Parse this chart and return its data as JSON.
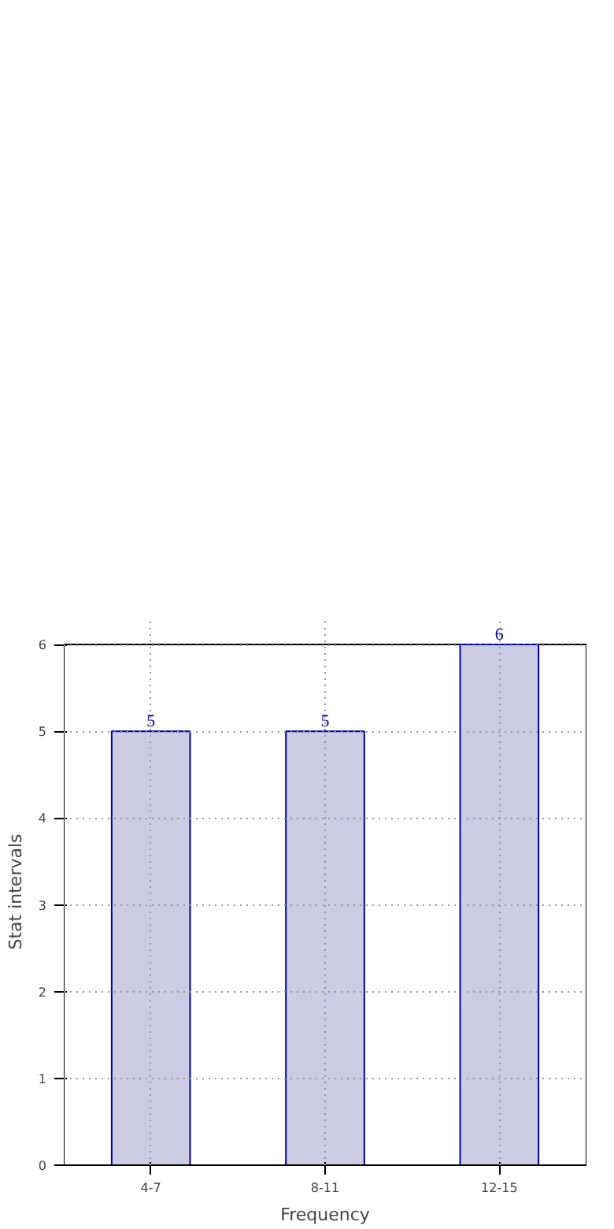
{
  "chart_data": {
    "type": "bar",
    "xlabel": "Frequency",
    "ylabel": "Stat intervals",
    "categories": [
      "4-7",
      "8-11",
      "12-15"
    ],
    "series": [
      {
        "color": "#cccce5",
        "values": [
          5,
          5,
          6
        ]
      }
    ],
    "ylim": [
      0,
      6
    ],
    "yticks": [
      0,
      1,
      2,
      3,
      4,
      5,
      6
    ],
    "grid": true,
    "data_labels": true
  }
}
